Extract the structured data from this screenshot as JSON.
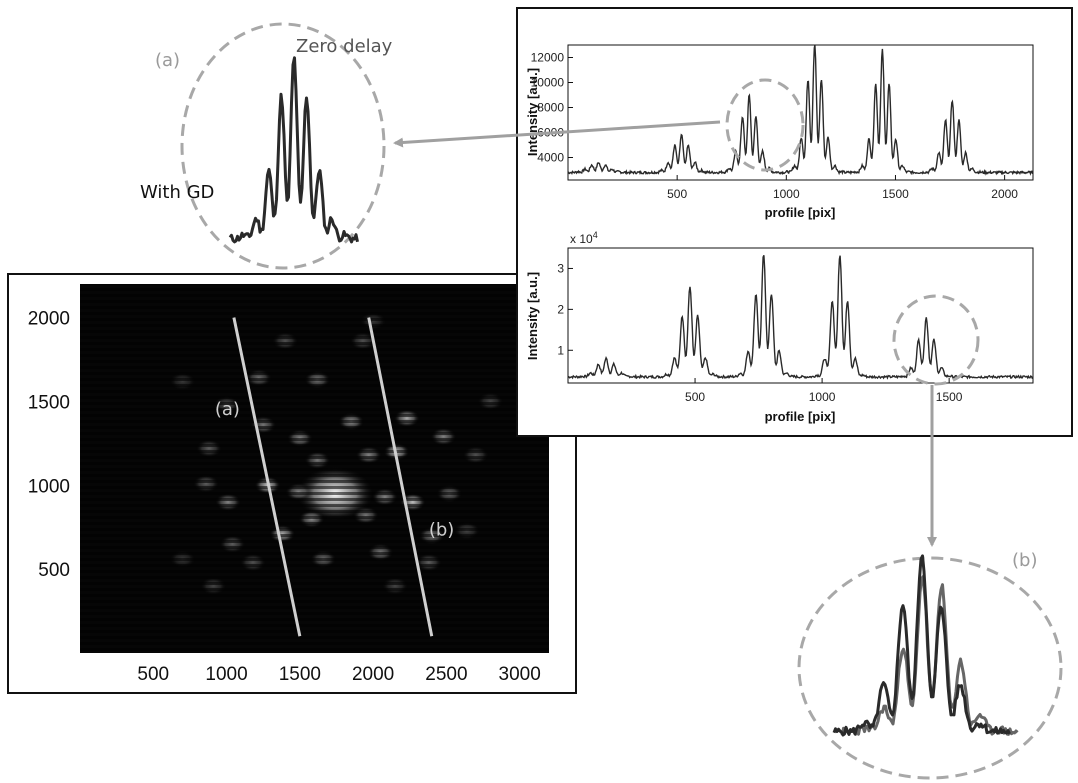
{
  "chart_data": [
    {
      "id": "image-2d",
      "type": "heatmap",
      "description_values": "Far-field intensity image with two sampling lines (a) and (b)",
      "x_ticks": [
        "500",
        "1000",
        "1500",
        "2000",
        "2500",
        "3000"
      ],
      "y_ticks": [
        "500",
        "1000",
        "1500",
        "2000"
      ],
      "xlim": [
        0,
        3200
      ],
      "ylim": [
        2200,
        0
      ],
      "annotations": [
        "(a)",
        "(b)"
      ],
      "lines": [
        {
          "name": "(a)",
          "x": [
            1050,
            1500
          ],
          "y": [
            2000,
            100
          ]
        },
        {
          "name": "(b)",
          "x": [
            1970,
            2400
          ],
          "y": [
            2000,
            100
          ]
        }
      ],
      "spots": [
        {
          "x": 1740,
          "y": 950,
          "v": 1.0,
          "r": 3.0
        },
        {
          "x": 1580,
          "y": 800,
          "v": 0.55
        },
        {
          "x": 1950,
          "y": 820,
          "v": 0.45
        },
        {
          "x": 1490,
          "y": 960,
          "v": 0.5
        },
        {
          "x": 2080,
          "y": 930,
          "v": 0.5
        },
        {
          "x": 1620,
          "y": 1150,
          "v": 0.45
        },
        {
          "x": 1970,
          "y": 1180,
          "v": 0.5
        },
        {
          "x": 1280,
          "y": 1000,
          "v": 0.75
        },
        {
          "x": 2270,
          "y": 900,
          "v": 0.75
        },
        {
          "x": 1380,
          "y": 710,
          "v": 0.65
        },
        {
          "x": 2160,
          "y": 1200,
          "v": 0.7
        },
        {
          "x": 1500,
          "y": 1280,
          "v": 0.5
        },
        {
          "x": 1250,
          "y": 1360,
          "v": 0.45
        },
        {
          "x": 1850,
          "y": 1380,
          "v": 0.55
        },
        {
          "x": 1660,
          "y": 560,
          "v": 0.4
        },
        {
          "x": 2050,
          "y": 600,
          "v": 0.45
        },
        {
          "x": 1220,
          "y": 1640,
          "v": 0.4
        },
        {
          "x": 1620,
          "y": 1630,
          "v": 0.45
        },
        {
          "x": 2230,
          "y": 1400,
          "v": 0.65
        },
        {
          "x": 2480,
          "y": 1290,
          "v": 0.5
        },
        {
          "x": 2520,
          "y": 950,
          "v": 0.4
        },
        {
          "x": 2400,
          "y": 700,
          "v": 0.45
        },
        {
          "x": 2380,
          "y": 540,
          "v": 0.35
        },
        {
          "x": 1010,
          "y": 900,
          "v": 0.5
        },
        {
          "x": 1040,
          "y": 650,
          "v": 0.35
        },
        {
          "x": 1180,
          "y": 540,
          "v": 0.3
        },
        {
          "x": 880,
          "y": 1220,
          "v": 0.35
        },
        {
          "x": 860,
          "y": 1010,
          "v": 0.35
        },
        {
          "x": 910,
          "y": 400,
          "v": 0.25
        },
        {
          "x": 1000,
          "y": 1480,
          "v": 0.3
        },
        {
          "x": 1400,
          "y": 1860,
          "v": 0.3
        },
        {
          "x": 1930,
          "y": 1860,
          "v": 0.3
        },
        {
          "x": 2700,
          "y": 1180,
          "v": 0.3
        },
        {
          "x": 2800,
          "y": 1500,
          "v": 0.25
        },
        {
          "x": 2640,
          "y": 730,
          "v": 0.25
        },
        {
          "x": 2150,
          "y": 400,
          "v": 0.25
        },
        {
          "x": 2000,
          "y": 1980,
          "v": 0.2
        },
        {
          "x": 700,
          "y": 1620,
          "v": 0.2
        },
        {
          "x": 700,
          "y": 560,
          "v": 0.2
        }
      ]
    },
    {
      "id": "profile-top",
      "type": "line",
      "xlabel": "profile [pix]",
      "ylabel": "Intensity [a.u.]",
      "xlim": [
        0,
        2130
      ],
      "ylim": [
        2200,
        13000
      ],
      "x_ticks": [
        500,
        1000,
        1500,
        2000
      ],
      "y_ticks": [
        4000,
        6000,
        8000,
        10000,
        12000
      ],
      "baseline": 2800,
      "packets": [
        {
          "center": 140,
          "amp": 800,
          "width": 60
        },
        {
          "center": 520,
          "amp": 3000,
          "width": 55
        },
        {
          "center": 830,
          "amp": 6200,
          "width": 55
        },
        {
          "center": 1130,
          "amp": 10300,
          "width": 55
        },
        {
          "center": 1440,
          "amp": 9800,
          "width": 55
        },
        {
          "center": 1760,
          "amp": 5800,
          "width": 55
        }
      ],
      "fringe_period": 32
    },
    {
      "id": "profile-bottom",
      "type": "line",
      "xlabel": "profile [pix]",
      "ylabel": "Intensity [a.u.]",
      "y_multiplier": "x 10",
      "y_multiplier_exp": "4",
      "xlim": [
        0,
        1830
      ],
      "ylim": [
        0.2,
        3.5
      ],
      "x_ticks": [
        500,
        1000,
        1500
      ],
      "y_ticks": [
        1,
        2,
        3
      ],
      "baseline": 0.35,
      "packets": [
        {
          "center": 150,
          "amp": 0.45,
          "width": 50
        },
        {
          "center": 480,
          "amp": 2.2,
          "width": 50
        },
        {
          "center": 770,
          "amp": 3.0,
          "width": 50
        },
        {
          "center": 1070,
          "amp": 3.0,
          "width": 45
        },
        {
          "center": 1410,
          "amp": 1.45,
          "width": 45
        }
      ],
      "fringe_period": 32
    },
    {
      "id": "zoom-a",
      "type": "line",
      "labels": {
        "panel": "(a)",
        "peak": "Zero delay",
        "side": "With GD"
      }
    },
    {
      "id": "zoom-b",
      "type": "line",
      "labels": {
        "panel": "(b)"
      }
    }
  ],
  "colors": {
    "trace": "#2a2a2a",
    "trace_alt": "#555555",
    "dashed_circle": "#a8a8a8",
    "arrow": "#a0a0a0",
    "annotation_text": "#8a8a8a",
    "image_bg": "#060606"
  }
}
